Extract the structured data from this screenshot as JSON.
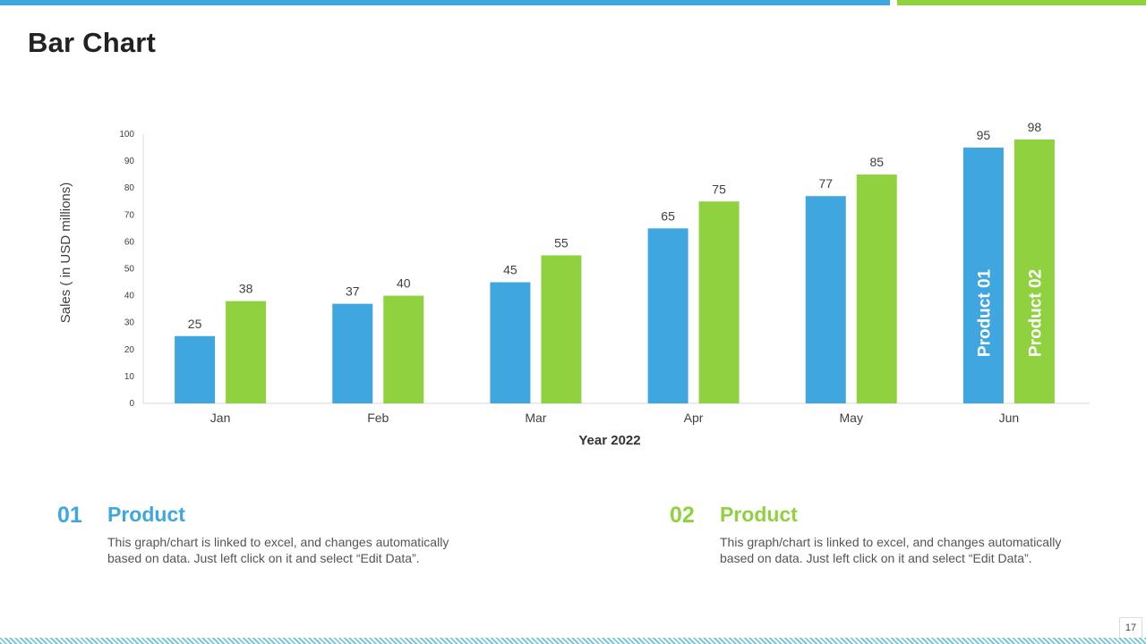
{
  "slide": {
    "title": "Bar Chart",
    "page_number": "17",
    "colors": {
      "blue": "#3fa6e0",
      "green": "#8fd13f"
    }
  },
  "chart_data": {
    "type": "bar",
    "title": "",
    "xlabel": "Year 2022",
    "ylabel": "Sales  ( in USD millions)",
    "categories": [
      "Jan",
      "Feb",
      "Mar",
      "Apr",
      "May",
      "Jun"
    ],
    "ylim": [
      0,
      100
    ],
    "yticks": [
      0,
      10,
      20,
      30,
      40,
      50,
      60,
      70,
      80,
      90,
      100
    ],
    "grid": false,
    "series": [
      {
        "name": "Product 01",
        "color": "#3fa6e0",
        "values": [
          25,
          37,
          45,
          65,
          77,
          95
        ]
      },
      {
        "name": "Product 02",
        "color": "#8fd13f",
        "values": [
          38,
          40,
          55,
          75,
          85,
          98
        ]
      }
    ]
  },
  "products": [
    {
      "number": "01",
      "title": "Product",
      "color": "#3fa6e0",
      "description": "This graph/chart is linked to excel, and changes automatically based on data. Just left click on it and select “Edit Data”."
    },
    {
      "number": "02",
      "title": "Product",
      "color": "#8fd13f",
      "description": "This graph/chart is linked to excel, and changes automatically based on data. Just left click on it and select “Edit Data”."
    }
  ]
}
